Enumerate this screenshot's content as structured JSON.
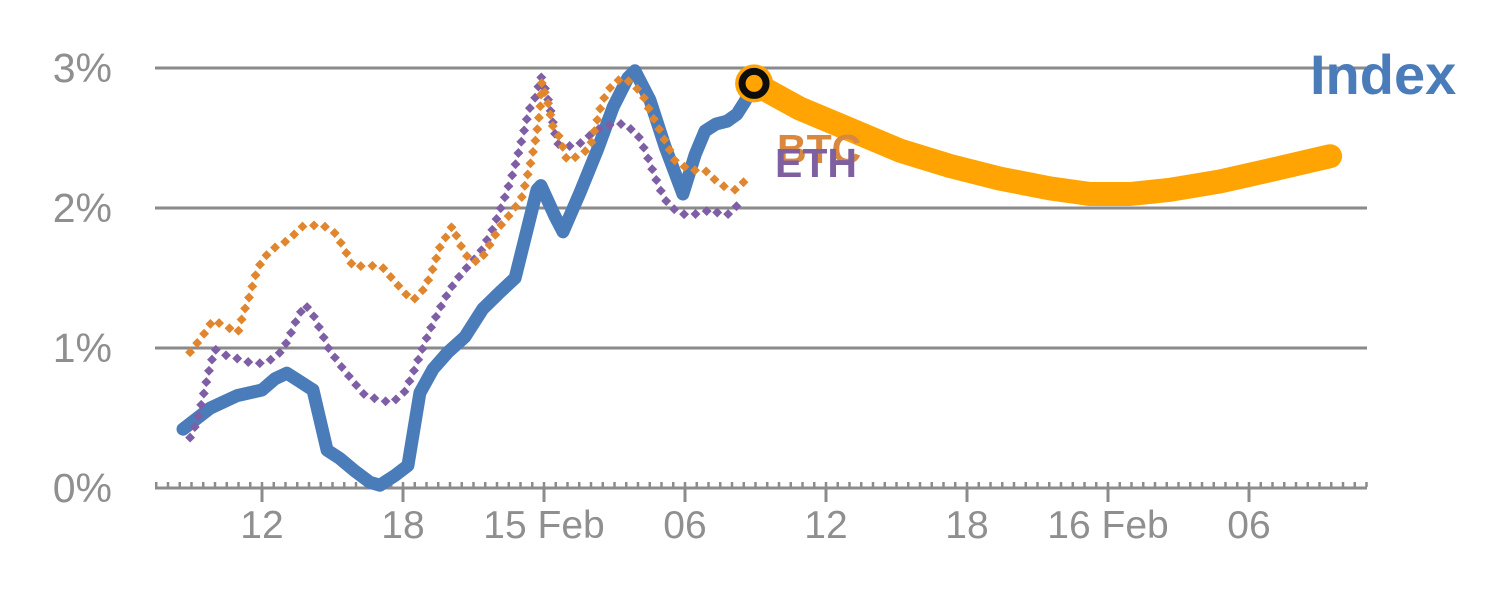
{
  "chart_data": {
    "type": "line",
    "title": "",
    "description": "Crypto index percentage-change chart with BTC and ETH dotted series and an orange forecast band from the current point",
    "x_axis": {
      "unit": "hours since 14 Feb 00:00",
      "range_t": [
        7.45,
        59.0
      ],
      "minor_tick_step_h": 0.5,
      "ticks": [
        {
          "t": 12,
          "label": "12"
        },
        {
          "t": 18,
          "label": "18"
        },
        {
          "t": 24,
          "label": "15 Feb"
        },
        {
          "t": 30,
          "label": "06"
        },
        {
          "t": 36,
          "label": "12"
        },
        {
          "t": 42,
          "label": "18"
        },
        {
          "t": 48,
          "label": "16 Feb"
        },
        {
          "t": 54,
          "label": "06"
        }
      ]
    },
    "y_axis": {
      "unit": "%",
      "min": 0,
      "max": 3,
      "grid": true,
      "ticks": [
        {
          "value": 0,
          "label": "0%"
        },
        {
          "value": 1,
          "label": "1%"
        },
        {
          "value": 2,
          "label": "2%"
        },
        {
          "value": 3,
          "label": "3%"
        }
      ]
    },
    "series": [
      {
        "name": "Index",
        "style": "solid",
        "color": "#4b7cba",
        "width": 13,
        "points": [
          [
            8.64,
            0.42
          ],
          [
            9.79,
            0.57
          ],
          [
            10.94,
            0.66
          ],
          [
            12,
            0.7
          ],
          [
            12.55,
            0.78
          ],
          [
            13.06,
            0.82
          ],
          [
            13.62,
            0.76
          ],
          [
            14.17,
            0.7
          ],
          [
            14.77,
            0.27
          ],
          [
            15.32,
            0.21
          ],
          [
            15.96,
            0.12
          ],
          [
            16.6,
            0.04
          ],
          [
            17.02,
            0.02
          ],
          [
            17.66,
            0.09
          ],
          [
            18.21,
            0.16
          ],
          [
            18.72,
            0.68
          ],
          [
            19.28,
            0.85
          ],
          [
            19.91,
            0.97
          ],
          [
            20.64,
            1.08
          ],
          [
            21.4,
            1.28
          ],
          [
            22.13,
            1.4
          ],
          [
            22.77,
            1.5
          ],
          [
            23.7,
            2.13
          ],
          [
            23.87,
            2.16
          ],
          [
            24.47,
            1.94
          ],
          [
            24.81,
            1.83
          ],
          [
            25.53,
            2.11
          ],
          [
            26.26,
            2.41
          ],
          [
            26.94,
            2.72
          ],
          [
            27.57,
            2.93
          ],
          [
            27.87,
            2.98
          ],
          [
            28.51,
            2.77
          ],
          [
            29.15,
            2.44
          ],
          [
            29.91,
            2.1
          ],
          [
            30.43,
            2.38
          ],
          [
            30.85,
            2.55
          ],
          [
            31.32,
            2.6
          ],
          [
            31.79,
            2.62
          ],
          [
            32.21,
            2.67
          ],
          [
            32.55,
            2.76
          ],
          [
            32.94,
            2.89
          ]
        ]
      },
      {
        "name": "BTC",
        "style": "dotted",
        "color": "#e0862f",
        "dot_size": 7,
        "points": [
          [
            8.94,
            0.97
          ],
          [
            9.49,
            1.09
          ],
          [
            9.91,
            1.2
          ],
          [
            10.51,
            1.15
          ],
          [
            10.98,
            1.11
          ],
          [
            11.19,
            1.24
          ],
          [
            11.49,
            1.38
          ],
          [
            11.7,
            1.51
          ],
          [
            12,
            1.63
          ],
          [
            12.47,
            1.71
          ],
          [
            13.11,
            1.77
          ],
          [
            13.74,
            1.87
          ],
          [
            14.55,
            1.88
          ],
          [
            15.11,
            1.82
          ],
          [
            15.53,
            1.7
          ],
          [
            15.87,
            1.58
          ],
          [
            16.51,
            1.59
          ],
          [
            17.11,
            1.58
          ],
          [
            17.57,
            1.49
          ],
          [
            18.09,
            1.39
          ],
          [
            18.43,
            1.34
          ],
          [
            18.94,
            1.43
          ],
          [
            19.28,
            1.57
          ],
          [
            19.57,
            1.72
          ],
          [
            20.09,
            1.87
          ],
          [
            20.43,
            1.74
          ],
          [
            20.85,
            1.62
          ],
          [
            21.28,
            1.62
          ],
          [
            21.7,
            1.74
          ],
          [
            22.13,
            1.87
          ],
          [
            22.68,
            1.98
          ],
          [
            23.06,
            2.08
          ],
          [
            23.4,
            2.3
          ],
          [
            23.66,
            2.5
          ],
          [
            23.83,
            2.7
          ],
          [
            23.91,
            2.9
          ],
          [
            24.17,
            2.75
          ],
          [
            24.38,
            2.58
          ],
          [
            24.68,
            2.5
          ],
          [
            24.98,
            2.34
          ],
          [
            25.45,
            2.37
          ],
          [
            25.96,
            2.43
          ],
          [
            26.47,
            2.76
          ],
          [
            26.89,
            2.88
          ],
          [
            27.32,
            2.93
          ],
          [
            27.66,
            2.9
          ],
          [
            28.17,
            2.82
          ],
          [
            28.51,
            2.69
          ],
          [
            28.94,
            2.55
          ],
          [
            29.57,
            2.34
          ],
          [
            30.21,
            2.27
          ],
          [
            30.85,
            2.27
          ],
          [
            31.28,
            2.2
          ],
          [
            31.7,
            2.15
          ],
          [
            32.13,
            2.13
          ],
          [
            32.47,
            2.18
          ],
          [
            32.77,
            2.24
          ]
        ]
      },
      {
        "name": "ETH",
        "style": "dotted",
        "color": "#7e5fa5",
        "dot_size": 7,
        "points": [
          [
            8.94,
            0.36
          ],
          [
            9.23,
            0.47
          ],
          [
            9.45,
            0.62
          ],
          [
            9.62,
            0.75
          ],
          [
            9.79,
            0.87
          ],
          [
            10,
            0.99
          ],
          [
            10.43,
            0.95
          ],
          [
            10.85,
            0.93
          ],
          [
            11.4,
            0.9
          ],
          [
            12,
            0.89
          ],
          [
            12.55,
            0.93
          ],
          [
            12.89,
            0.99
          ],
          [
            13.19,
            1.09
          ],
          [
            13.49,
            1.21
          ],
          [
            13.83,
            1.31
          ],
          [
            14.17,
            1.24
          ],
          [
            14.51,
            1.12
          ],
          [
            14.85,
            0.99
          ],
          [
            15.32,
            0.88
          ],
          [
            15.83,
            0.77
          ],
          [
            16.34,
            0.67
          ],
          [
            16.94,
            0.63
          ],
          [
            17.53,
            0.61
          ],
          [
            18.04,
            0.68
          ],
          [
            18.38,
            0.8
          ],
          [
            18.68,
            0.93
          ],
          [
            18.98,
            1.06
          ],
          [
            19.28,
            1.18
          ],
          [
            19.62,
            1.3
          ],
          [
            20,
            1.42
          ],
          [
            20.43,
            1.52
          ],
          [
            20.85,
            1.6
          ],
          [
            21.28,
            1.68
          ],
          [
            21.79,
            1.84
          ],
          [
            22.3,
            2.06
          ],
          [
            22.72,
            2.27
          ],
          [
            23.06,
            2.49
          ],
          [
            23.36,
            2.7
          ],
          [
            23.66,
            2.8
          ],
          [
            23.87,
            2.94
          ],
          [
            24.13,
            2.81
          ],
          [
            24.3,
            2.68
          ],
          [
            24.55,
            2.46
          ],
          [
            24.94,
            2.44
          ],
          [
            25.45,
            2.45
          ],
          [
            25.96,
            2.52
          ],
          [
            26.47,
            2.58
          ],
          [
            26.98,
            2.6
          ],
          [
            27.45,
            2.6
          ],
          [
            28,
            2.52
          ],
          [
            28.3,
            2.41
          ],
          [
            28.6,
            2.28
          ],
          [
            28.89,
            2.15
          ],
          [
            29.23,
            2.04
          ],
          [
            29.74,
            1.96
          ],
          [
            30.26,
            1.95
          ],
          [
            30.77,
            1.97
          ],
          [
            31.15,
            1.99
          ],
          [
            31.45,
            1.96
          ],
          [
            31.79,
            1.95
          ],
          [
            32.13,
            2.0
          ],
          [
            32.38,
            2.05
          ]
        ]
      },
      {
        "name": "Index forecast",
        "style": "solid",
        "color": "#ffa402",
        "width": 24,
        "points": [
          [
            32.94,
            2.89
          ],
          [
            34.89,
            2.71
          ],
          [
            37.02,
            2.56
          ],
          [
            39.15,
            2.41
          ],
          [
            41.28,
            2.3
          ],
          [
            43.4,
            2.21
          ],
          [
            45.53,
            2.14
          ],
          [
            47.23,
            2.1
          ],
          [
            48.94,
            2.1
          ],
          [
            50.64,
            2.13
          ],
          [
            52.77,
            2.19
          ],
          [
            54.89,
            2.27
          ],
          [
            57.45,
            2.37
          ]
        ]
      }
    ],
    "current_marker": {
      "series": "Index",
      "t": 32.94,
      "value": 2.89,
      "ring_color": "#0d0d0d",
      "fill_color": "#ffa402"
    },
    "legend": {
      "index_label": "Index",
      "btc_label": "BTC",
      "eth_label": "ETH"
    },
    "colors": {
      "grid": "#8a8a8a",
      "axis": "#8c8c8c",
      "tick_label": "#8f8f8f",
      "index": "#4b7cba",
      "btc": "#e0862f",
      "eth": "#7e5fa5",
      "forecast": "#ffa402"
    }
  }
}
